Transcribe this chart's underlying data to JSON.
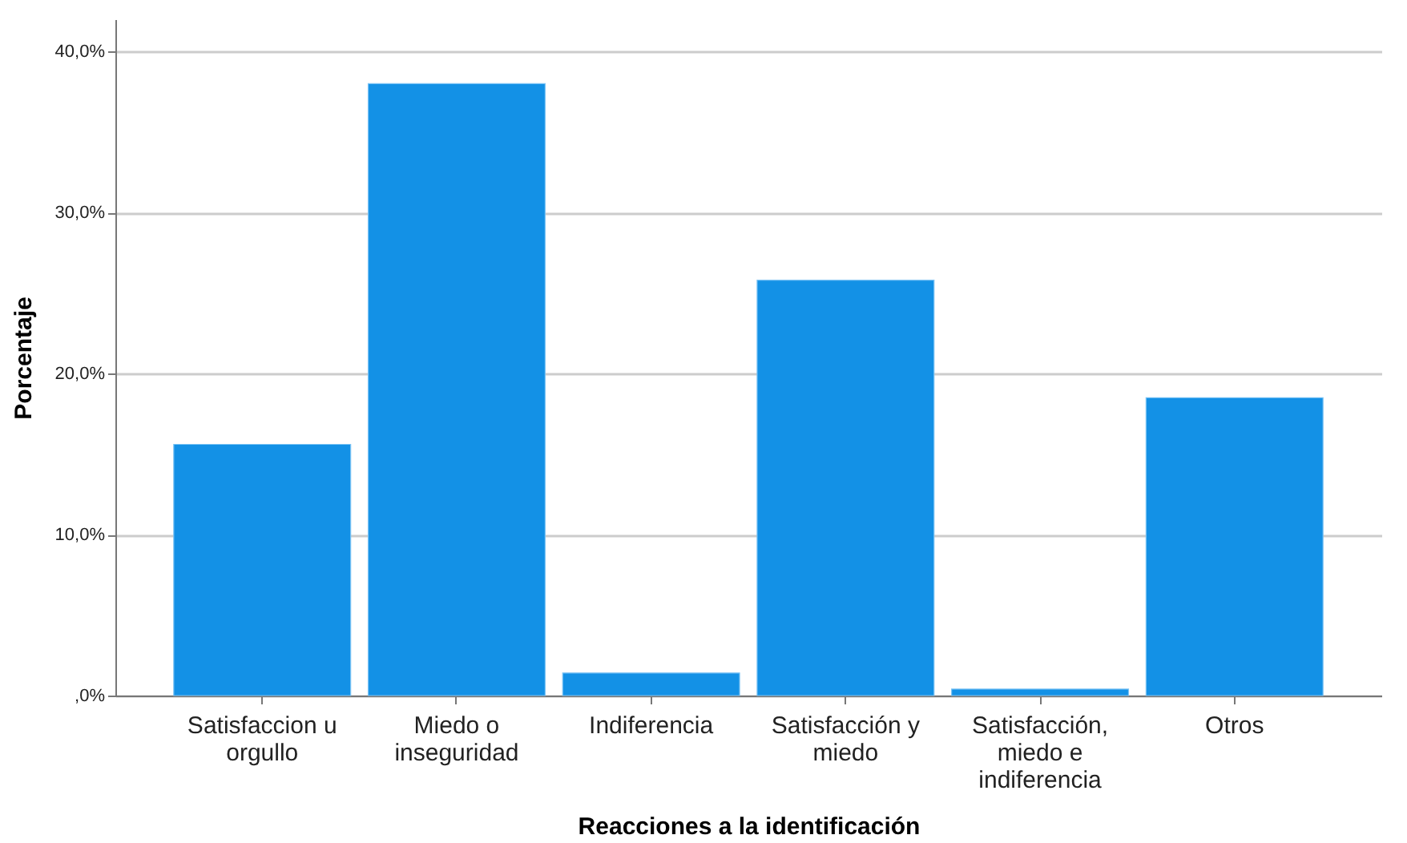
{
  "chart_data": {
    "type": "bar",
    "xlabel": "Reacciones a la identificación",
    "ylabel": "Porcentaje",
    "categories": [
      "Satisfaccion u orgullo",
      "Miedo o inseguridad",
      "Indiferencia",
      "Satisfacción y miedo",
      "Satisfacción, miedo e indiferencia",
      "Otros"
    ],
    "values": [
      15.6,
      38.0,
      1.4,
      25.8,
      0.4,
      18.5
    ],
    "color": "#1391e6",
    "ylim": [
      0,
      42
    ],
    "yticks": [
      {
        "value": 0,
        "label": ",0%"
      },
      {
        "value": 10,
        "label": "10,0%"
      },
      {
        "value": 20,
        "label": "20,0%"
      },
      {
        "value": 30,
        "label": "30,0%"
      },
      {
        "value": 40,
        "label": "40,0%"
      }
    ],
    "grid": "y"
  }
}
